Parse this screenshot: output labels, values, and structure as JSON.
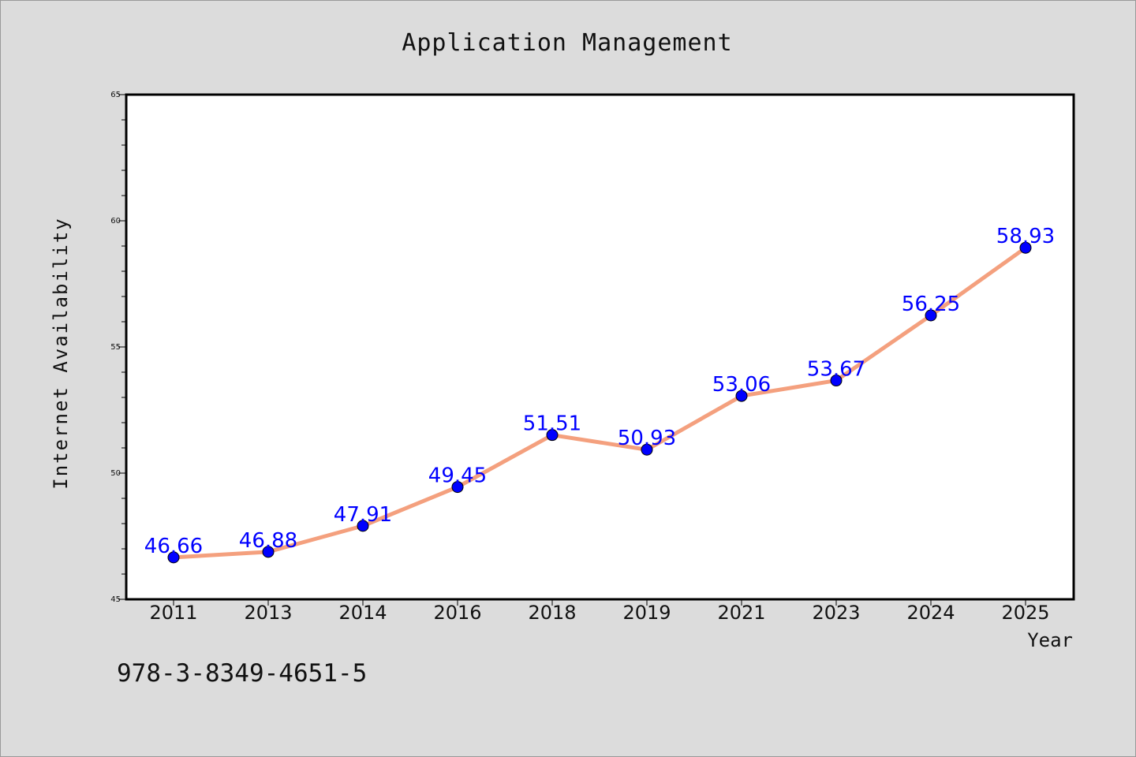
{
  "chart_data": {
    "type": "line",
    "title": "Application Management",
    "xlabel": "Year",
    "ylabel": "Internet Availability",
    "categories": [
      "2011",
      "2013",
      "2014",
      "2016",
      "2018",
      "2019",
      "2021",
      "2023",
      "2024",
      "2025"
    ],
    "values": [
      46.66,
      46.88,
      47.91,
      49.45,
      51.51,
      50.93,
      53.06,
      53.67,
      56.25,
      58.93
    ],
    "data_labels": [
      "46.66",
      "46.88",
      "47.91",
      "49.45",
      "51.51",
      "50.93",
      "53.06",
      "53.67",
      "56.25",
      "58.93"
    ],
    "ylim": [
      45,
      65
    ],
    "yticks": [
      "45",
      "50",
      "55",
      "60",
      "65"
    ],
    "grid": false,
    "line_color": "#f4a07e",
    "marker_color": "#0000ff"
  },
  "footer": {
    "code": "978-3-8349-4651-5"
  }
}
